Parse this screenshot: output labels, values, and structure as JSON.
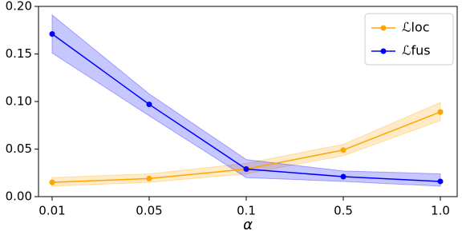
{
  "chart_data": {
    "type": "line",
    "x_label": "α",
    "categories": [
      "0.01",
      "0.05",
      "0.1",
      "0.5",
      "1.0"
    ],
    "series": [
      {
        "name": "ℒloc",
        "color": "#ffa500",
        "values": [
          0.015,
          0.019,
          0.029,
          0.049,
          0.089
        ],
        "lower": [
          0.011,
          0.015,
          0.024,
          0.043,
          0.08
        ],
        "upper": [
          0.02,
          0.024,
          0.035,
          0.055,
          0.099
        ]
      },
      {
        "name": "ℒfus",
        "color": "#0000ff",
        "values": [
          0.171,
          0.097,
          0.029,
          0.021,
          0.016
        ],
        "lower": [
          0.151,
          0.085,
          0.02,
          0.016,
          0.011
        ],
        "upper": [
          0.191,
          0.108,
          0.039,
          0.027,
          0.024
        ]
      }
    ],
    "ylim": [
      0,
      0.2
    ],
    "yticks": [
      {
        "value": 0,
        "label": "0.00"
      },
      {
        "value": 0.05,
        "label": "0.05"
      },
      {
        "value": 0.1,
        "label": "0.10"
      },
      {
        "value": 0.15,
        "label": "0.15"
      },
      {
        "value": 0.2,
        "label": "0.20"
      }
    ],
    "legend": "upper right"
  }
}
